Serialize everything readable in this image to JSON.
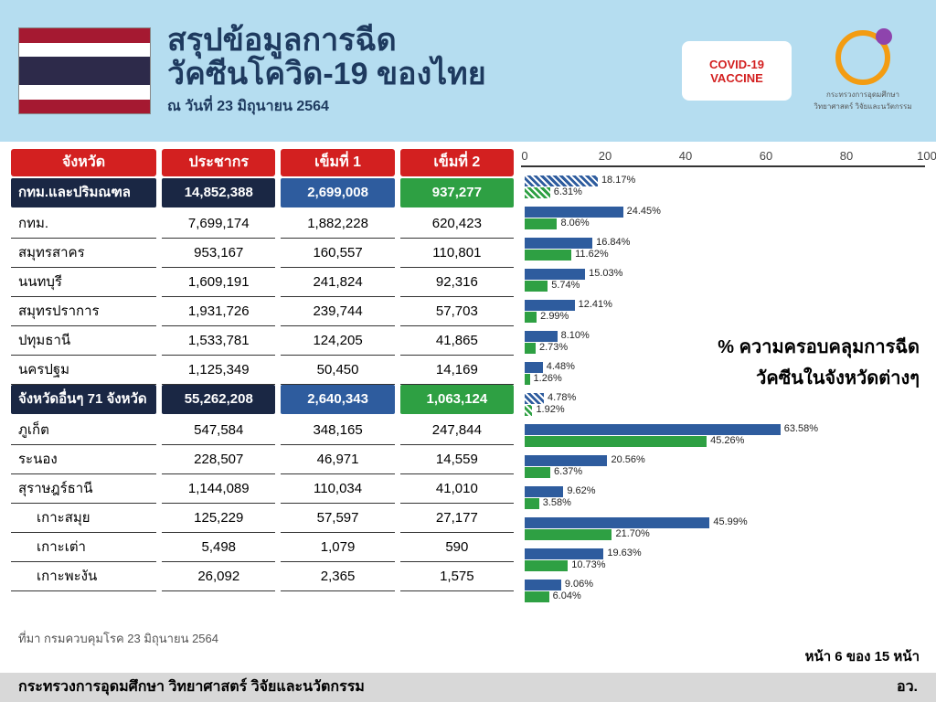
{
  "header": {
    "title1": "สรุปข้อมูลการฉีด",
    "title2": "วัคซีนโควิด-19 ของไทย",
    "date": "ณ วันที่ 23 มิถุนายน 2564",
    "vaccine_label1": "COVID-19",
    "vaccine_label2": "VACCINE",
    "logo_text": "กระทรวงการอุดมศึกษา\nวิทยาศาสตร์ วิจัยและนวัตกรรม"
  },
  "columns": {
    "province": "จังหวัด",
    "population": "ประชากร",
    "dose1": "เข็มที่ 1",
    "dose2": "เข็มที่ 2"
  },
  "group1": {
    "header": {
      "name": "กทม.และปริมณฑล",
      "pop": "14,852,388",
      "d1": "2,699,008",
      "d2": "937,277"
    },
    "rows": [
      {
        "name": "กทม.",
        "pop": "7,699,174",
        "d1": "1,882,228",
        "d2": "620,423"
      },
      {
        "name": "สมุทรสาคร",
        "pop": "953,167",
        "d1": "160,557",
        "d2": "110,801"
      },
      {
        "name": "นนทบุรี",
        "pop": "1,609,191",
        "d1": "241,824",
        "d2": "92,316"
      },
      {
        "name": "สมุทรปราการ",
        "pop": "1,931,726",
        "d1": "239,744",
        "d2": "57,703"
      },
      {
        "name": "ปทุมธานี",
        "pop": "1,533,781",
        "d1": "124,205",
        "d2": "41,865"
      },
      {
        "name": "นครปฐม",
        "pop": "1,125,349",
        "d1": "50,450",
        "d2": "14,169"
      }
    ]
  },
  "group2": {
    "header": {
      "name": "จังหวัดอื่นๆ 71 จังหวัด",
      "pop": "55,262,208",
      "d1": "2,640,343",
      "d2": "1,063,124"
    },
    "rows": [
      {
        "name": "ภูเก็ต",
        "pop": "547,584",
        "d1": "348,165",
        "d2": "247,844",
        "indent": false
      },
      {
        "name": "ระนอง",
        "pop": "228,507",
        "d1": "46,971",
        "d2": "14,559",
        "indent": false
      },
      {
        "name": "สุราษฎร์ธานี",
        "pop": "1,144,089",
        "d1": "110,034",
        "d2": "41,010",
        "indent": false
      },
      {
        "name": "เกาะสมุย",
        "pop": "125,229",
        "d1": "57,597",
        "d2": "27,177",
        "indent": true
      },
      {
        "name": "เกาะเต่า",
        "pop": "5,498",
        "d1": "1,079",
        "d2": "590",
        "indent": true
      },
      {
        "name": "เกาะพะงัน",
        "pop": "26,092",
        "d1": "2,365",
        "d2": "1,575",
        "indent": true
      }
    ]
  },
  "chart": {
    "title1": "% ความครอบคลุมการฉีด",
    "title2": "วัคซีนในจังหวัดต่างๆ",
    "xmax": 100,
    "xticks": [
      0,
      20,
      40,
      60,
      80,
      100
    ],
    "color_d1": "#2e5c9e",
    "color_d2": "#2ea043",
    "bars": [
      {
        "p1": 18.17,
        "p2": 6.31,
        "hatch": true
      },
      {
        "p1": 24.45,
        "p2": 8.06
      },
      {
        "p1": 16.84,
        "p2": 11.62
      },
      {
        "p1": 15.03,
        "p2": 5.74
      },
      {
        "p1": 12.41,
        "p2": 2.99
      },
      {
        "p1": 8.1,
        "p2": 2.73
      },
      {
        "p1": 4.48,
        "p2": 1.26
      },
      {
        "p1": 4.78,
        "p2": 1.92,
        "hatch": true
      },
      {
        "p1": 63.58,
        "p2": 45.26
      },
      {
        "p1": 20.56,
        "p2": 6.37
      },
      {
        "p1": 9.62,
        "p2": 3.58
      },
      {
        "p1": 45.99,
        "p2": 21.7
      },
      {
        "p1": 19.63,
        "p2": 10.73
      },
      {
        "p1": 9.06,
        "p2": 6.04
      }
    ]
  },
  "footer": {
    "source": "ที่มา กรมควบคุมโรค 23 มิถุนายน 2564",
    "page": "หน้า 6 ของ 15 หน้า",
    "ministry": "กระทรวงการอุดมศึกษา วิทยาศาสตร์ วิจัยและนวัตกรรม",
    "short": "อว."
  }
}
